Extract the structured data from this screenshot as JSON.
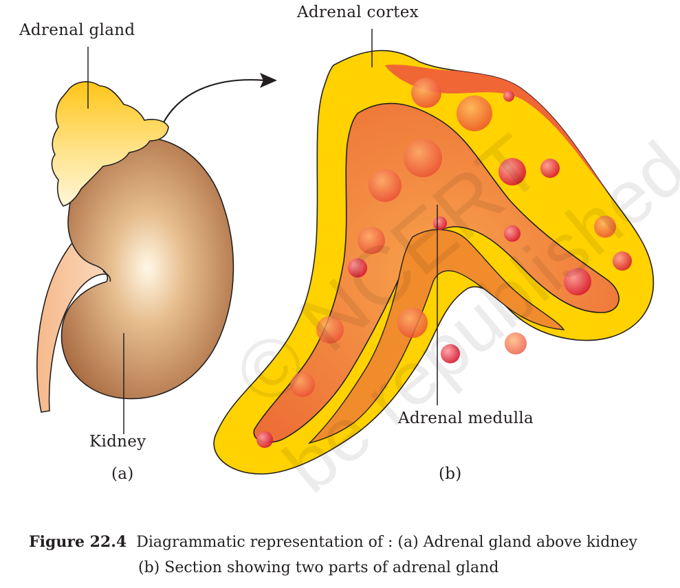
{
  "labels": {
    "adrenal_gland": "Adrenal gland",
    "kidney": "Kidney",
    "part_a": "(a)",
    "adrenal_cortex": "Adrenal cortex",
    "adrenal_medulla": "Adrenal medulla",
    "part_b": "(b)"
  },
  "caption": {
    "figure_number": "Figure 22.4",
    "line1": "Diagrammatic representation of : (a) Adrenal gland above kidney",
    "line2": "(b) Section showing two parts of adrenal gland"
  },
  "watermark": {
    "line1": "© NCERT",
    "line2": "be republished"
  },
  "colors": {
    "cortex_yellow": "#FFD200",
    "medulla_orange": "#F2842A",
    "kidney_brown": "#B87A4E",
    "ureter_peach": "#F8C8A0",
    "outline": "#231F20"
  }
}
